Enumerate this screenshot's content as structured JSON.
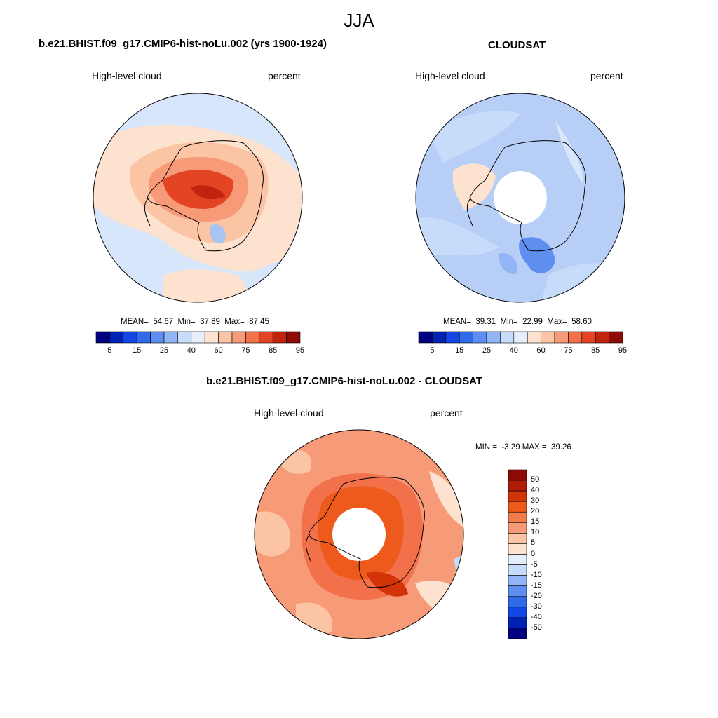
{
  "figure": {
    "season": "JJA"
  },
  "panel_model": {
    "title": "b.e21.BHIST.f09_g17.CMIP6-hist-noLu.002 (yrs 1900-1924)",
    "variable": "High-level cloud",
    "units": "percent",
    "stats": "MEAN=  54.67  Min=  37.89  Max=  87.45",
    "mean": 54.67,
    "min": 37.89,
    "max": 87.45,
    "colorbar_ticks": [
      "5",
      "15",
      "25",
      "40",
      "60",
      "75",
      "85",
      "95"
    ]
  },
  "panel_obs": {
    "title": "CLOUDSAT",
    "variable": "High-level cloud",
    "units": "percent",
    "stats": "MEAN=  39.31  Min=  22.99  Max=  58.60",
    "mean": 39.31,
    "min": 22.99,
    "max": 58.6,
    "colorbar_ticks": [
      "5",
      "15",
      "25",
      "40",
      "60",
      "75",
      "85",
      "95"
    ]
  },
  "panel_diff": {
    "title": "b.e21.BHIST.f09_g17.CMIP6-hist-noLu.002 - CLOUDSAT",
    "variable": "High-level cloud",
    "units": "percent",
    "stats": "MIN =  -3.29 MAX =  39.26",
    "min": -3.29,
    "max": 39.26,
    "colorbar_ticks": [
      "50",
      "40",
      "30",
      "20",
      "15",
      "10",
      "5",
      "0",
      "-5",
      "-10",
      "-15",
      "-20",
      "-30",
      "-40",
      "-50"
    ]
  },
  "colors": {
    "abs_scale": [
      "#000080",
      "#0022b4",
      "#1446e6",
      "#2f6be9",
      "#5d8ef0",
      "#92b5f5",
      "#c6dcfa",
      "#e6eefc",
      "#fde2cf",
      "#fbc4a4",
      "#f79a77",
      "#f2714b",
      "#e34524",
      "#c2230d",
      "#8e0a06"
    ],
    "diff_scale": [
      "#8e0a06",
      "#b01c06",
      "#d23408",
      "#ee5a1c",
      "#f47c4a",
      "#f79a77",
      "#fbc4a4",
      "#fde2cf",
      "#e6eefc",
      "#c6dcfa",
      "#92b5f5",
      "#5d8ef0",
      "#2f6be9",
      "#1446e6",
      "#0022b4",
      "#000080"
    ]
  }
}
